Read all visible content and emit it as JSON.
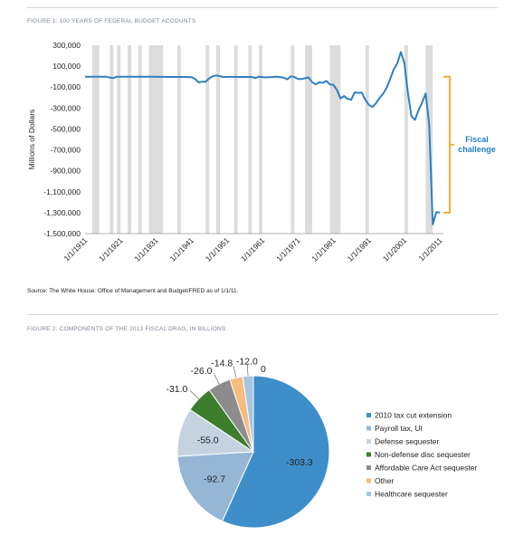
{
  "figure1": {
    "title": "FIGURE 1: 100 YEARS OF FEDERAL BUDGET ACCOUNTS",
    "source": "Source: The White House: Office of Management and Budget/FRED as of 1/1/11."
  },
  "figure2": {
    "title": "FIGURE 2: COMPONENTS OF THE 2013 FISCAL DRAG, IN BILLIONS"
  },
  "chart_data": [
    {
      "type": "line",
      "ylabel": "Millions of Dollars",
      "xlabel": "",
      "ylim": [
        -1500000,
        300000
      ],
      "yticks": [
        300000,
        100000,
        -100000,
        -300000,
        -500000,
        -700000,
        -900000,
        -1100000,
        -1300000,
        -1500000
      ],
      "ytick_labels": [
        "300,000",
        "100,000",
        "-100,000",
        "-300,000",
        "-500,000",
        "-700,000",
        "-900,000",
        "-1,100,000",
        "-1,300,000",
        "-1,500,000"
      ],
      "xlim": [
        1911,
        2012
      ],
      "xticks": [
        1911,
        1921,
        1931,
        1941,
        1951,
        1961,
        1971,
        1981,
        1991,
        2001,
        2011
      ],
      "xtick_labels": [
        "1/1/1911",
        "1/1/1921",
        "1/1/1931",
        "1/1/1941",
        "1/1/1951",
        "1/1/1961",
        "1/1/1971",
        "1/1/1981",
        "1/1/1991",
        "1/1/2001",
        "1/1/2011"
      ],
      "line_color": "#2f7fc1",
      "recession_color": "#dcdcdc",
      "recessions": [
        [
          1913,
          1915
        ],
        [
          1918,
          1919
        ],
        [
          1920,
          1921
        ],
        [
          1923,
          1924
        ],
        [
          1926,
          1927
        ],
        [
          1929,
          1933
        ],
        [
          1937,
          1938
        ],
        [
          1945,
          1946
        ],
        [
          1948,
          1949
        ],
        [
          1953,
          1954
        ],
        [
          1957,
          1958
        ],
        [
          1960,
          1961
        ],
        [
          1969,
          1970
        ],
        [
          1973,
          1975
        ],
        [
          1980,
          1981
        ],
        [
          1981,
          1983
        ],
        [
          1990,
          1991
        ],
        [
          2001,
          2002
        ],
        [
          2007,
          2009
        ]
      ],
      "series": [
        {
          "x": [
            1911,
            1917,
            1918,
            1919,
            1920,
            1925,
            1930,
            1935,
            1940,
            1941,
            1942,
            1943,
            1944,
            1945,
            1946,
            1947,
            1948,
            1950,
            1952,
            1955,
            1958,
            1959,
            1960,
            1962,
            1965,
            1967,
            1968,
            1969,
            1970,
            1971,
            1972,
            1974,
            1975,
            1976,
            1977,
            1978,
            1979,
            1980,
            1981,
            1982,
            1983,
            1984,
            1985,
            1986,
            1987,
            1988,
            1989,
            1990,
            1991,
            1992,
            1993,
            1994,
            1995,
            1996,
            1997,
            1998,
            1999,
            2000,
            2001,
            2002,
            2003,
            2004,
            2005,
            2006,
            2007,
            2008,
            2009,
            2010,
            2011
          ],
          "y": [
            0,
            0,
            -9000,
            -13000,
            0,
            0,
            0,
            -3000,
            -3000,
            -5000,
            -21000,
            -55000,
            -48000,
            -48000,
            -16000,
            4000,
            12000,
            -3000,
            -2000,
            -3000,
            -3000,
            -13000,
            0,
            -7000,
            -1000,
            -9000,
            -25000,
            3000,
            -3000,
            -23000,
            -23000,
            -6000,
            -53000,
            -74000,
            -54000,
            -59000,
            -41000,
            -74000,
            -79000,
            -128000,
            -208000,
            -185000,
            -212000,
            -221000,
            -150000,
            -155000,
            -153000,
            -221000,
            -269000,
            -290000,
            -255000,
            -203000,
            -164000,
            -107000,
            -22000,
            69000,
            126000,
            236000,
            128000,
            -158000,
            -378000,
            -413000,
            -318000,
            -248000,
            -161000,
            -459000,
            -1413000,
            -1294000,
            -1300000
          ]
        }
      ],
      "annotation": {
        "text_line1": "Fiscal",
        "text_line2": "challenge",
        "color": "#1f7fc1",
        "bracket_color": "#f5a623",
        "y_top": 0,
        "y_bottom": -1300000
      }
    },
    {
      "type": "pie",
      "labels": [
        "2010 tax cut extension",
        "Payroll tax, UI",
        "Defense sequester",
        "Non-defense disc sequester",
        "Affordable Care Act sequester",
        "Other",
        "Healthcare sequester"
      ],
      "values": [
        -303.3,
        -92.7,
        -55.0,
        -31.0,
        -26.0,
        -14.8,
        -12.0
      ],
      "value_labels": [
        "-303.3",
        "-92.7",
        "-55.0",
        "-31.0",
        "-26.0",
        "-14.8",
        "-12.0"
      ],
      "extra_label": "0",
      "colors": [
        "#3e8ec9",
        "#96b6d5",
        "#c5d3e0",
        "#3c7d2e",
        "#8c8c8c",
        "#f6bd7e",
        "#a6c6e0"
      ],
      "legend_position": "right"
    }
  ]
}
